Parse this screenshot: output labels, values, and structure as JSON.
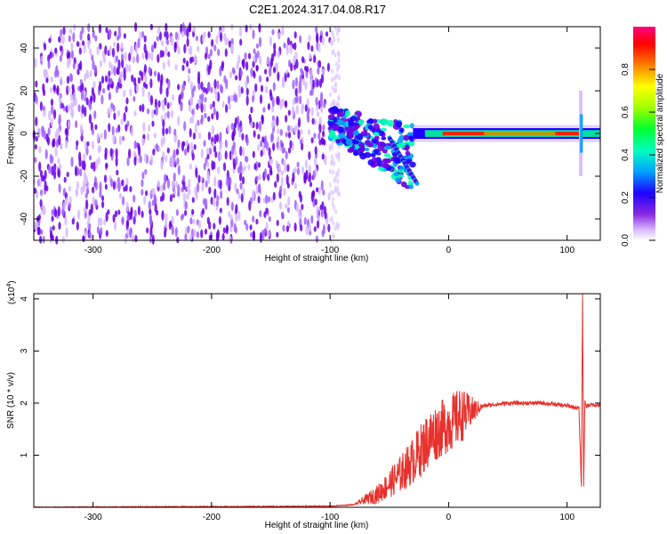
{
  "title": "C2E1.2024.317.04.08.R17",
  "chart_data": [
    {
      "type": "heatmap",
      "xlabel": "Height of straight line (km)",
      "ylabel": "Frequency (Hz)",
      "xlim": [
        -350,
        128
      ],
      "ylim": [
        -50,
        50
      ],
      "xticks": [
        -300,
        -200,
        -100,
        0,
        100
      ],
      "yticks": [
        -40,
        -20,
        0,
        20,
        40
      ],
      "colorbar": {
        "label": "Normalized spectral amplitude",
        "range": [
          0,
          1
        ],
        "ticks": [
          "0.0",
          "0.2",
          "0.4",
          "0.6",
          "0.8"
        ],
        "colors": [
          "#ffffff",
          "#b070ff",
          "#6000e0",
          "#0000ff",
          "#00b0ff",
          "#00ffb0",
          "#00ff00",
          "#b0ff00",
          "#ffff00",
          "#ff8000",
          "#ff0000",
          "#ff0070"
        ]
      },
      "regions": [
        {
          "x": [
            -350,
            -100
          ],
          "y": [
            -50,
            50
          ],
          "amplitude": 0.1
        },
        {
          "x": [
            -100,
            -30
          ],
          "y": [
            -25,
            20
          ],
          "amplitude": 0.35
        },
        {
          "x": [
            -30,
            128
          ],
          "y": [
            -3,
            3
          ],
          "amplitude": 0.9
        }
      ]
    },
    {
      "type": "line",
      "xlabel": "Height of straight line (km)",
      "ylabel": "SNR (10 * v/v)",
      "y_multiplier": "(x10",
      "y_multiplier_exp": "4",
      "y_multiplier_close": ")",
      "xlim": [
        -350,
        128
      ],
      "ylim": [
        0,
        4.1
      ],
      "xticks": [
        -300,
        -200,
        -100,
        0,
        100
      ],
      "yticks": [
        1,
        2,
        3,
        4
      ],
      "color": "#e8302c",
      "x": [
        -350,
        -100,
        -80,
        -60,
        -50,
        -40,
        -30,
        -20,
        -15,
        -10,
        0,
        10,
        20,
        30,
        50,
        80,
        100,
        110,
        112,
        113,
        114,
        115,
        116,
        120,
        128
      ],
      "y": [
        0.0,
        0.02,
        0.05,
        0.25,
        0.45,
        0.65,
        0.9,
        1.2,
        1.35,
        1.45,
        1.6,
        1.75,
        1.85,
        1.95,
        2.0,
        2.0,
        1.95,
        1.9,
        0.4,
        4.1,
        0.4,
        2.05,
        1.95,
        1.97,
        1.96
      ]
    }
  ]
}
